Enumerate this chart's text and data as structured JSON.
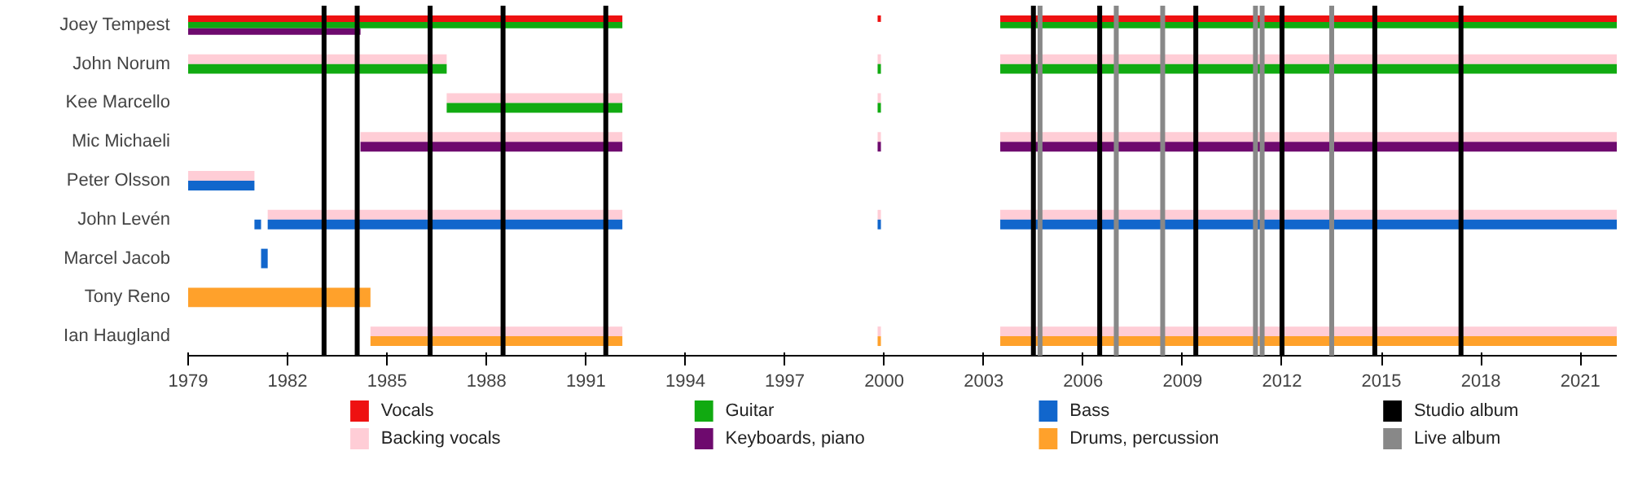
{
  "chart_data": {
    "type": "bar",
    "orientation": "horizontal",
    "legend": "bottom",
    "categories": [
      "Joey Tempest",
      "John Norum",
      "Kee Marcello",
      "Mic Michaeli",
      "Peter Olsson",
      "John Levén",
      "Marcel Jacob",
      "Tony Reno",
      "Ian Haugland"
    ],
    "xlim": [
      1979,
      2022.1
    ],
    "xticks": [
      1979,
      1982,
      1985,
      1988,
      1991,
      1994,
      1997,
      2000,
      2003,
      2006,
      2009,
      2012,
      2015,
      2018,
      2021
    ],
    "series": [
      {
        "name": "Vocals",
        "color": "#ee1111",
        "base": [
          1979,
          null,
          null,
          null,
          null,
          null,
          null,
          null,
          null
        ],
        "values": [
          13.1,
          null,
          null,
          null,
          null,
          null,
          null,
          null,
          null
        ]
      },
      {
        "color": "#ee1111",
        "base": [
          1999.8,
          null,
          null,
          null,
          null,
          null,
          null,
          null,
          null
        ],
        "values": [
          0.1,
          null,
          null,
          null,
          null,
          null,
          null,
          null,
          null
        ]
      },
      {
        "color": "#ee1111",
        "base": [
          2003.5,
          null,
          null,
          null,
          null,
          null,
          null,
          null,
          null
        ],
        "values": [
          18.6,
          null,
          null,
          null,
          null,
          null,
          null,
          null,
          null
        ]
      },
      {
        "name": "Backing vocals",
        "color": "#ffcdd6",
        "base": [
          null,
          1979,
          1986.8,
          1984.2,
          1979,
          1981.4,
          null,
          null,
          1984.5
        ],
        "values": [
          null,
          7.8,
          5.3,
          7.9,
          2.0,
          10.7,
          null,
          null,
          7.6
        ]
      },
      {
        "color": "#ffcdd6",
        "base": [
          null,
          1999.8,
          1999.8,
          1999.8,
          null,
          1999.8,
          null,
          null,
          1999.8
        ],
        "values": [
          null,
          0.1,
          0.1,
          0.1,
          null,
          0.1,
          null,
          null,
          0.1
        ]
      },
      {
        "color": "#ffcdd6",
        "base": [
          null,
          2003.5,
          null,
          2003.5,
          null,
          2003.5,
          null,
          null,
          2003.5
        ],
        "values": [
          null,
          18.6,
          null,
          18.6,
          null,
          18.6,
          null,
          null,
          18.6
        ]
      },
      {
        "name": "Guitar",
        "color": "#11aa11",
        "base": [
          1979,
          1979,
          1986.8,
          null,
          null,
          null,
          null,
          null,
          null
        ],
        "values": [
          13.1,
          7.8,
          5.3,
          null,
          null,
          null,
          null,
          null,
          null
        ]
      },
      {
        "color": "#11aa11",
        "base": [
          null,
          1999.8,
          1999.8,
          null,
          null,
          null,
          null,
          null,
          null
        ],
        "values": [
          null,
          0.1,
          0.1,
          null,
          null,
          null,
          null,
          null,
          null
        ]
      },
      {
        "color": "#11aa11",
        "base": [
          2003.5,
          2003.5,
          null,
          null,
          null,
          null,
          null,
          null,
          null
        ],
        "values": [
          18.6,
          18.6,
          null,
          null,
          null,
          null,
          null,
          null,
          null
        ]
      },
      {
        "name": "Keyboards, piano",
        "color": "#6e0a6e",
        "base": [
          1979,
          null,
          null,
          1984.2,
          null,
          null,
          null,
          null,
          null
        ],
        "values": [
          5.2,
          null,
          null,
          7.9,
          null,
          null,
          null,
          null,
          null
        ]
      },
      {
        "color": "#6e0a6e",
        "base": [
          null,
          null,
          null,
          1999.8,
          null,
          null,
          null,
          null,
          null
        ],
        "values": [
          null,
          null,
          null,
          0.1,
          null,
          null,
          null,
          null,
          null
        ]
      },
      {
        "color": "#6e0a6e",
        "base": [
          null,
          null,
          null,
          2003.5,
          null,
          null,
          null,
          null,
          null
        ],
        "values": [
          null,
          null,
          null,
          18.6,
          null,
          null,
          null,
          null,
          null
        ]
      },
      {
        "name": "Bass",
        "color": "#1166cc",
        "base": [
          null,
          null,
          null,
          null,
          1979,
          1981.4,
          1981.2,
          null,
          null
        ],
        "values": [
          null,
          null,
          null,
          null,
          2.0,
          10.7,
          0.2,
          null,
          null
        ]
      },
      {
        "color": "#1166cc",
        "base": [
          null,
          null,
          null,
          null,
          null,
          1981.0,
          null,
          null,
          null
        ],
        "values": [
          null,
          null,
          null,
          null,
          null,
          0.2,
          null,
          null,
          null
        ]
      },
      {
        "color": "#1166cc",
        "base": [
          null,
          null,
          null,
          null,
          null,
          1999.8,
          null,
          null,
          null
        ],
        "values": [
          null,
          null,
          null,
          null,
          null,
          0.1,
          null,
          null,
          null
        ]
      },
      {
        "color": "#1166cc",
        "base": [
          null,
          null,
          null,
          null,
          null,
          2003.5,
          null,
          null,
          null
        ],
        "values": [
          null,
          null,
          null,
          null,
          null,
          18.6,
          null,
          null,
          null
        ]
      },
      {
        "name": "Drums, percussion",
        "color": "#ffa12b",
        "base": [
          null,
          null,
          null,
          null,
          null,
          null,
          null,
          1979,
          1984.5
        ],
        "values": [
          null,
          null,
          null,
          null,
          null,
          null,
          null,
          5.5,
          7.6
        ]
      },
      {
        "color": "#ffa12b",
        "base": [
          null,
          null,
          null,
          null,
          null,
          null,
          null,
          null,
          1999.8
        ],
        "values": [
          null,
          null,
          null,
          null,
          null,
          null,
          null,
          null,
          0.1
        ]
      },
      {
        "color": "#ffa12b",
        "base": [
          null,
          null,
          null,
          null,
          null,
          null,
          null,
          null,
          2003.5
        ],
        "values": [
          null,
          null,
          null,
          null,
          null,
          null,
          null,
          null,
          18.6
        ]
      }
    ],
    "ref_lines": [
      {
        "axis": "x",
        "value": 1983.1,
        "label": "Studio album",
        "color": "#000000"
      },
      {
        "axis": "x",
        "value": 1984.1,
        "color": "#000000"
      },
      {
        "axis": "x",
        "value": 1986.3,
        "color": "#000000"
      },
      {
        "axis": "x",
        "value": 1988.5,
        "color": "#000000"
      },
      {
        "axis": "x",
        "value": 1991.6,
        "color": "#000000"
      },
      {
        "axis": "x",
        "value": 2004.5,
        "color": "#000000"
      },
      {
        "axis": "x",
        "value": 2006.5,
        "color": "#000000"
      },
      {
        "axis": "x",
        "value": 2009.4,
        "color": "#000000"
      },
      {
        "axis": "x",
        "value": 2012.0,
        "color": "#000000"
      },
      {
        "axis": "x",
        "value": 2014.8,
        "color": "#000000"
      },
      {
        "axis": "x",
        "value": 2017.4,
        "color": "#000000"
      },
      {
        "axis": "x",
        "value": 2004.7,
        "label": "Live album",
        "color": "#888888"
      },
      {
        "axis": "x",
        "value": 2007.0,
        "color": "#888888"
      },
      {
        "axis": "x",
        "value": 2008.4,
        "color": "#888888"
      },
      {
        "axis": "x",
        "value": 2011.2,
        "color": "#888888"
      },
      {
        "axis": "x",
        "value": 2011.4,
        "color": "#888888"
      },
      {
        "axis": "x",
        "value": 2013.5,
        "color": "#888888"
      }
    ]
  }
}
